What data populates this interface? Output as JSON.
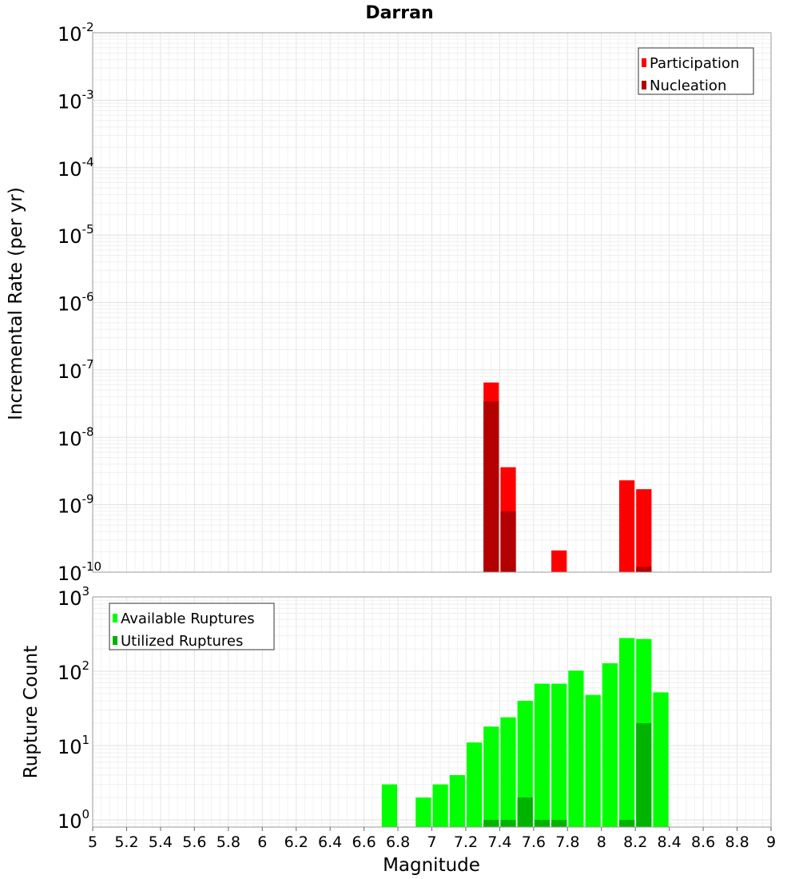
{
  "chart_data": [
    {
      "type": "bar",
      "title": "Darran",
      "ylabel": "Incremental Rate (per yr)",
      "xlabel": "",
      "yscale": "log",
      "ylim": [
        1e-10,
        0.01
      ],
      "xlim": [
        5,
        9
      ],
      "y_tick_labels": [
        {
          "base": "10",
          "exp": "-10"
        },
        {
          "base": "10",
          "exp": "-9"
        },
        {
          "base": "10",
          "exp": "-8"
        },
        {
          "base": "10",
          "exp": "-7"
        },
        {
          "base": "10",
          "exp": "-6"
        },
        {
          "base": "10",
          "exp": "-5"
        },
        {
          "base": "10",
          "exp": "-4"
        },
        {
          "base": "10",
          "exp": "-3"
        },
        {
          "base": "10",
          "exp": "-2"
        }
      ],
      "grid": true,
      "legend_position": "top-right",
      "bar_width": 0.1,
      "series": [
        {
          "name": "Participation",
          "color": "#ff0000",
          "points": [
            {
              "x": 7.35,
              "y": 6.5e-08
            },
            {
              "x": 7.45,
              "y": 3.6e-09
            },
            {
              "x": 7.75,
              "y": 2.1e-10
            },
            {
              "x": 8.15,
              "y": 2.3e-09
            },
            {
              "x": 8.25,
              "y": 1.7e-09
            }
          ]
        },
        {
          "name": "Nucleation",
          "color": "#b30000",
          "points": [
            {
              "x": 7.35,
              "y": 3.4e-08
            },
            {
              "x": 7.45,
              "y": 8e-10
            },
            {
              "x": 8.25,
              "y": 1.2e-10
            }
          ]
        }
      ]
    },
    {
      "type": "bar",
      "title": "",
      "ylabel": "Rupture Count",
      "xlabel": "Magnitude",
      "yscale": "log",
      "ylim": [
        0.8,
        1000
      ],
      "xlim": [
        5,
        9
      ],
      "x_ticks": [
        "5",
        "5.2",
        "5.4",
        "5.6",
        "5.8",
        "6",
        "6.2",
        "6.4",
        "6.6",
        "6.8",
        "7",
        "7.2",
        "7.4",
        "7.6",
        "7.8",
        "8",
        "8.2",
        "8.4",
        "8.6",
        "8.8",
        "9"
      ],
      "y_tick_labels": [
        {
          "base": "10",
          "exp": "0"
        },
        {
          "base": "10",
          "exp": "1"
        },
        {
          "base": "10",
          "exp": "2"
        },
        {
          "base": "10",
          "exp": "3"
        }
      ],
      "grid": true,
      "legend_position": "top-left",
      "bar_width": 0.1,
      "series": [
        {
          "name": "Available Ruptures",
          "color": "#00ff00",
          "points": [
            {
              "x": 6.75,
              "y": 3
            },
            {
              "x": 6.95,
              "y": 2
            },
            {
              "x": 7.05,
              "y": 3
            },
            {
              "x": 7.15,
              "y": 4
            },
            {
              "x": 7.25,
              "y": 11
            },
            {
              "x": 7.35,
              "y": 18
            },
            {
              "x": 7.45,
              "y": 24
            },
            {
              "x": 7.55,
              "y": 40
            },
            {
              "x": 7.65,
              "y": 68
            },
            {
              "x": 7.75,
              "y": 68
            },
            {
              "x": 7.85,
              "y": 102
            },
            {
              "x": 7.95,
              "y": 48
            },
            {
              "x": 8.05,
              "y": 128
            },
            {
              "x": 8.15,
              "y": 280
            },
            {
              "x": 8.25,
              "y": 272
            },
            {
              "x": 8.35,
              "y": 52
            }
          ]
        },
        {
          "name": "Utilized Ruptures",
          "color": "#00b300",
          "points": [
            {
              "x": 7.35,
              "y": 1
            },
            {
              "x": 7.45,
              "y": 1
            },
            {
              "x": 7.55,
              "y": 2
            },
            {
              "x": 7.65,
              "y": 1
            },
            {
              "x": 7.75,
              "y": 1
            },
            {
              "x": 8.15,
              "y": 1
            },
            {
              "x": 8.25,
              "y": 20
            }
          ]
        }
      ]
    }
  ]
}
